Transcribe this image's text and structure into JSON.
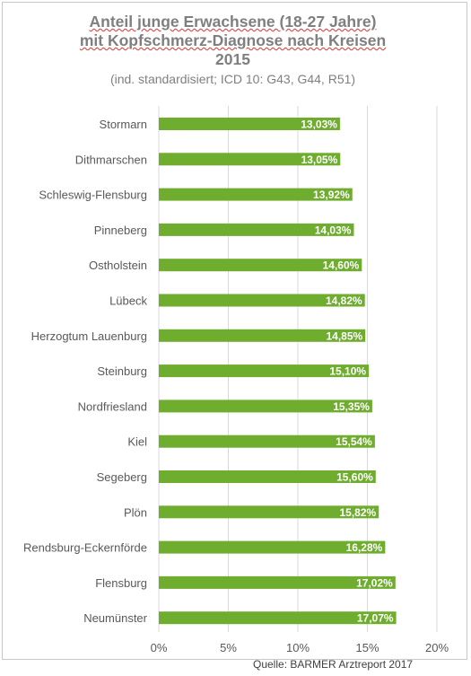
{
  "title_lines": [
    "Anteil junge Erwachsene (18-27 Jahre)",
    "mit Kopfschmerz-Diagnose nach Kreisen",
    "2015"
  ],
  "subtitle": "(ind. standardisiert; ICD 10: G43, G44, R51)",
  "source": "Quelle: BARMER Arztreport 2017",
  "colors": {
    "bar": "#6fad2f",
    "label": "#ffffff",
    "grid": "#d9d9d9",
    "text": "#595959"
  },
  "chart_data": {
    "type": "bar",
    "orientation": "horizontal",
    "categories": [
      "Stormarn",
      "Dithmarschen",
      "Schleswig-Flensburg",
      "Pinneberg",
      "Ostholstein",
      "Lübeck",
      "Herzogtum Lauenburg",
      "Steinburg",
      "Nordfriesland",
      "Kiel",
      "Segeberg",
      "Plön",
      "Rendsburg-Eckernförde",
      "Flensburg",
      "Neumünster"
    ],
    "values": [
      13.03,
      13.05,
      13.92,
      14.03,
      14.6,
      14.82,
      14.85,
      15.1,
      15.35,
      15.54,
      15.6,
      15.82,
      16.28,
      17.02,
      17.07
    ],
    "value_labels": [
      "13,03%",
      "13,05%",
      "13,92%",
      "14,03%",
      "14,60%",
      "14,82%",
      "14,85%",
      "15,10%",
      "15,35%",
      "15,54%",
      "15,60%",
      "15,82%",
      "16,28%",
      "17,02%",
      "17,07%"
    ],
    "x_ticks": [
      0,
      5,
      10,
      15,
      20
    ],
    "x_tick_labels": [
      "0%",
      "5%",
      "10%",
      "15%",
      "20%"
    ],
    "xlim": [
      0,
      20
    ],
    "grid": true,
    "legend": "none"
  }
}
